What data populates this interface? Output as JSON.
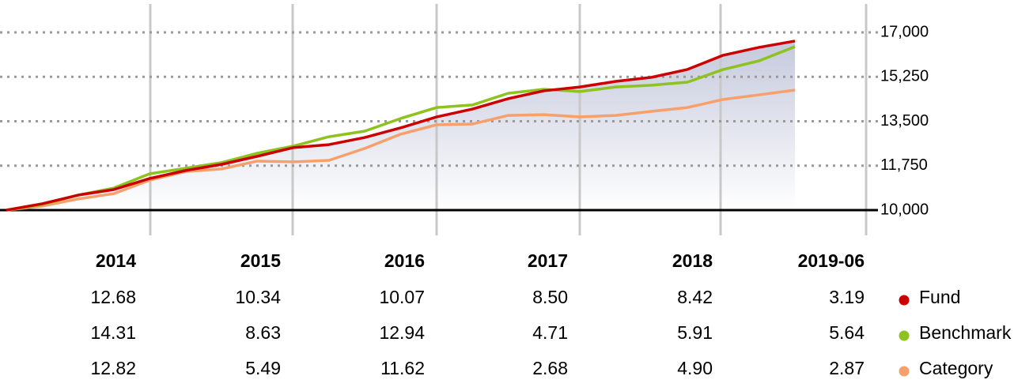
{
  "chart_data": {
    "type": "line",
    "categories": [
      null,
      null,
      null,
      null,
      null,
      null,
      null,
      null,
      null,
      null,
      null,
      null,
      null,
      null,
      null,
      null,
      null,
      null,
      null,
      null,
      null,
      null,
      null
    ],
    "series": [
      {
        "name": "Fund",
        "color": "#cc0000",
        "values": [
          10000,
          10250,
          10590,
          10810,
          11245,
          11560,
          11800,
          12120,
          12460,
          12580,
          12860,
          13240,
          13670,
          13980,
          14390,
          14700,
          14850,
          15070,
          15230,
          15540,
          16100,
          16410,
          16660
        ]
      },
      {
        "name": "Benchmark",
        "color": "#8dc21f",
        "values": [
          10000,
          10220,
          10590,
          10870,
          11430,
          11650,
          11870,
          12240,
          12520,
          12890,
          13110,
          13610,
          14040,
          14140,
          14600,
          14760,
          14670,
          14850,
          14920,
          15040,
          15540,
          15880,
          16440
        ]
      },
      {
        "name": "Category",
        "color": "#f7a06b",
        "values": [
          10000,
          10160,
          10440,
          10650,
          11180,
          11520,
          11620,
          11930,
          11900,
          11960,
          12430,
          12990,
          13360,
          13390,
          13730,
          13760,
          13670,
          13730,
          13890,
          14040,
          14360,
          14540,
          14730
        ]
      }
    ],
    "ylim": [
      10000,
      17000
    ],
    "yticks": [
      {
        "value": 10000,
        "label": "10,000"
      },
      {
        "value": 11750,
        "label": "11,750"
      },
      {
        "value": 13500,
        "label": "13,500"
      },
      {
        "value": 15250,
        "label": "15,250"
      },
      {
        "value": 17000,
        "label": "17,000"
      }
    ],
    "grid": true
  },
  "table": {
    "columns": [
      "2014",
      "2015",
      "2016",
      "2017",
      "2018",
      "2019-06"
    ],
    "rows": [
      [
        "12.68",
        "10.34",
        "10.07",
        "8.50",
        "8.42",
        "3.19"
      ],
      [
        "14.31",
        "8.63",
        "12.94",
        "4.71",
        "5.91",
        "5.64"
      ],
      [
        "12.82",
        "5.49",
        "11.62",
        "2.68",
        "4.90",
        "2.87"
      ]
    ]
  }
}
